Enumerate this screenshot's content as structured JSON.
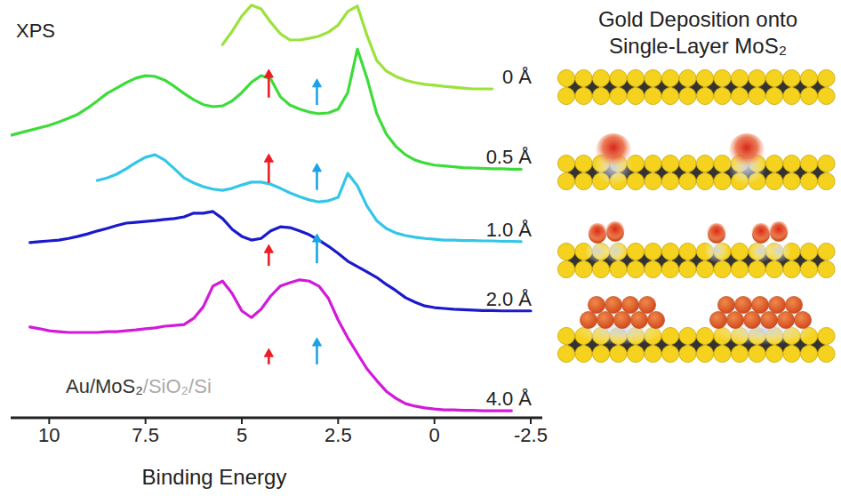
{
  "chart_data": {
    "type": "line",
    "title": "Gold Deposition onto Single-Layer MoS₂",
    "x_label": "Binding Energy",
    "xlim": [
      11,
      -2.8
    ],
    "xticks": [
      10,
      7.5,
      5,
      2.5,
      0,
      -2.5
    ],
    "ylim": [
      0,
      100
    ],
    "tick_labels": "x",
    "x": [
      11,
      10.75,
      10.5,
      10.25,
      10,
      9.75,
      9.5,
      9.25,
      9,
      8.75,
      8.5,
      8.25,
      8,
      7.75,
      7.5,
      7.25,
      7,
      6.75,
      6.5,
      6.25,
      6,
      5.75,
      5.5,
      5.25,
      5,
      4.75,
      4.5,
      4.25,
      4,
      3.75,
      3.5,
      3.25,
      3,
      2.75,
      2.5,
      2.25,
      2,
      1.75,
      1.5,
      1.25,
      1,
      0.75,
      0.5,
      0.25,
      0,
      -0.25,
      -0.5,
      -0.75,
      -1,
      -1.25,
      -1.5,
      -1.75,
      -2,
      -2.25,
      -2.5
    ],
    "series": [
      {
        "name": "0 Å",
        "color": "#9be23a",
        "values": [
          null,
          null,
          null,
          null,
          null,
          null,
          null,
          null,
          null,
          null,
          null,
          null,
          null,
          null,
          null,
          null,
          null,
          null,
          null,
          null,
          null,
          null,
          90.1,
          93.3,
          97.0,
          99.6,
          98.7,
          95.5,
          92.7,
          91.2,
          91.2,
          91.6,
          92.1,
          93.1,
          94.8,
          98.1,
          99.4,
          92.3,
          86.3,
          83.7,
          82.4,
          81.5,
          80.9,
          80.5,
          80.3,
          80.0,
          79.8,
          79.6,
          79.4,
          79.4,
          79.4,
          null,
          null,
          null,
          null
        ]
      },
      {
        "name": "0.5 Å",
        "color": "#3ddc3a",
        "values": [
          68.2,
          68.8,
          69.4,
          70.0,
          70.6,
          71.4,
          72.3,
          73.3,
          74.8,
          76.5,
          78.3,
          79.6,
          80.9,
          82.0,
          82.6,
          82.4,
          81.5,
          80.0,
          78.3,
          76.8,
          75.6,
          75.1,
          75.3,
          76.5,
          78.5,
          81.0,
          82.6,
          81.8,
          77.5,
          75.5,
          74.5,
          73.8,
          73.4,
          73.6,
          74.5,
          78.5,
          89.0,
          82.0,
          73.5,
          68.5,
          65.5,
          63.5,
          62.2,
          61.5,
          61.0,
          60.8,
          60.6,
          60.4,
          60.3,
          60.2,
          60.1,
          60.1,
          60.0,
          60.0,
          null
        ]
      },
      {
        "name": "1.0 Å",
        "color": "#33c6e8",
        "values": [
          null,
          null,
          null,
          null,
          null,
          null,
          null,
          null,
          null,
          57.3,
          57.9,
          58.8,
          60.1,
          61.6,
          62.9,
          63.5,
          62.2,
          60.1,
          57.9,
          56.7,
          55.8,
          55.2,
          54.9,
          55.4,
          56.2,
          56.9,
          56.9,
          56.4,
          55.4,
          54.3,
          53.4,
          52.6,
          52.1,
          52.4,
          53.2,
          59.0,
          56.0,
          51.1,
          47.6,
          45.7,
          44.6,
          44.0,
          43.6,
          43.3,
          43.1,
          42.9,
          42.9,
          42.8,
          42.8,
          42.7,
          42.7,
          42.6,
          42.6,
          42.5,
          null
        ]
      },
      {
        "name": "2.0 Å",
        "color": "#1a1acc",
        "values": [
          null,
          null,
          42.3,
          42.5,
          42.7,
          42.9,
          43.3,
          43.8,
          44.4,
          45.1,
          45.7,
          46.4,
          47.0,
          47.2,
          47.4,
          47.6,
          47.9,
          48.1,
          48.5,
          49.4,
          49.4,
          49.8,
          48.1,
          45.5,
          43.8,
          42.9,
          43.3,
          45.1,
          46.1,
          45.9,
          45.1,
          44.2,
          42.9,
          41.4,
          39.7,
          37.8,
          36.5,
          35.2,
          33.9,
          32.2,
          30.7,
          29.0,
          27.9,
          27.0,
          26.6,
          26.4,
          26.2,
          26.1,
          26.0,
          25.9,
          25.9,
          25.8,
          25.8,
          25.8,
          25.8
        ]
      },
      {
        "name": "4.0 Å",
        "color": "#d21ad8",
        "values": [
          null,
          null,
          21.9,
          21.5,
          21.0,
          20.8,
          20.6,
          20.6,
          20.6,
          20.6,
          20.8,
          20.8,
          21.0,
          21.2,
          21.5,
          21.7,
          22.1,
          22.3,
          22.5,
          24.0,
          26.8,
          31.8,
          33.0,
          30.0,
          25.8,
          24.2,
          26.2,
          29.4,
          31.8,
          32.6,
          33.3,
          33.0,
          31.8,
          28.8,
          23.6,
          19.3,
          15.5,
          11.8,
          9.0,
          6.4,
          4.7,
          3.4,
          2.8,
          2.4,
          2.1,
          1.9,
          1.9,
          1.8,
          1.8,
          1.7,
          1.7,
          1.7,
          1.7,
          null,
          null
        ]
      }
    ],
    "arrows": [
      {
        "x": 4.3,
        "y_start": 77.3,
        "y_end": 84.1,
        "color": "#ee1c25"
      },
      {
        "x": 3.05,
        "y_start": 75.5,
        "y_end": 81.8,
        "color": "#1aa3e8"
      },
      {
        "x": 4.3,
        "y_start": 56.7,
        "y_end": 63.7,
        "color": "#ee1c25"
      },
      {
        "x": 3.05,
        "y_start": 55.0,
        "y_end": 61.4,
        "color": "#1aa3e8"
      },
      {
        "x": 4.3,
        "y_start": 36.7,
        "y_end": 41.8,
        "color": "#ee1c25"
      },
      {
        "x": 3.05,
        "y_start": 37.3,
        "y_end": 44.4,
        "color": "#1aa3e8"
      },
      {
        "x": 4.3,
        "y_start": 12.9,
        "y_end": 16.7,
        "color": "#ee1c25"
      },
      {
        "x": 3.05,
        "y_start": 12.9,
        "y_end": 19.3,
        "color": "#1aa3e8"
      }
    ],
    "annotations": [
      {
        "text": "XPS",
        "color": "#222222"
      },
      {
        "text": "Au/MoS₂",
        "color": "#333333"
      },
      {
        "text": "/SiO₂/Si",
        "color": "#aaaaaa"
      }
    ]
  }
}
